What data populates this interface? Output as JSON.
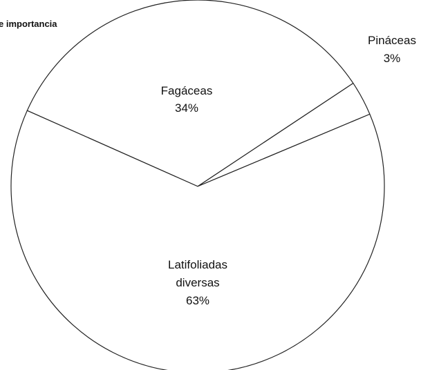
{
  "chart_data": {
    "type": "pie",
    "title": "e importancia",
    "slices": [
      {
        "name": "Fagáceas",
        "value": 34,
        "label": "34%"
      },
      {
        "name": "Pináceas",
        "value": 3,
        "label": "3%"
      },
      {
        "name": "Latifoliadas diversas",
        "value": 63,
        "label": "63%"
      }
    ],
    "colors": {
      "fill": "#ffffff",
      "stroke": "#222222"
    }
  }
}
